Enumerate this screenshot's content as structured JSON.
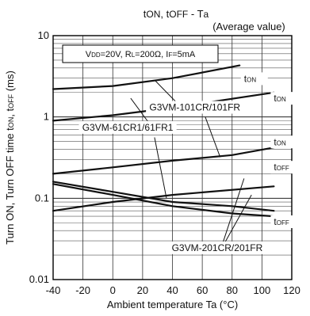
{
  "chart_data": {
    "type": "line",
    "title": {
      "main": "tON, tOFF - Ta",
      "sub": "(Average value)"
    },
    "xlabel": "Ambient temperature Ta (°C)",
    "ylabel": "Turn ON, Turn OFF time tON, tOFF (ms)",
    "xlim": [
      -40,
      120
    ],
    "ylim": [
      0.01,
      10
    ],
    "yscale": "log",
    "grid": true,
    "x_ticks": [
      "-40",
      "-20",
      "0",
      "20",
      "40",
      "60",
      "80",
      "100",
      "120"
    ],
    "y_ticks": [
      "0.01",
      "0.1",
      "1",
      "10"
    ],
    "condition": "VDD=20V, RL=200Ω, IF=5mA",
    "series": [
      {
        "x": [
          -40,
          0,
          40,
          85
        ],
        "y": [
          2.2,
          2.4,
          3.0,
          4.3
        ]
      },
      {
        "x": [
          -40,
          0,
          40,
          108
        ],
        "y": [
          0.9,
          1.05,
          1.3,
          2.0
        ]
      },
      {
        "x": [
          -40,
          0,
          40,
          80,
          108
        ],
        "y": [
          0.2,
          0.24,
          0.29,
          0.34,
          0.42
        ]
      },
      {
        "x": [
          -40,
          0,
          40,
          80,
          108
        ],
        "y": [
          0.15,
          0.11,
          0.08,
          0.065,
          0.06
        ]
      },
      {
        "x": [
          -40,
          0,
          40,
          108
        ],
        "y": [
          0.07,
          0.09,
          0.11,
          0.14
        ]
      },
      {
        "x": [
          -40,
          0,
          40,
          80,
          108
        ],
        "y": [
          0.16,
          0.12,
          0.09,
          0.08,
          0.07
        ]
      }
    ],
    "labels": [
      {
        "text": "tON",
        "x": 88,
        "y": 2.7
      },
      {
        "text": "tON",
        "x": 108,
        "y": 1.55
      },
      {
        "text": "tON",
        "x": 108,
        "y": 0.45
      },
      {
        "text": "tOFF",
        "x": 108,
        "y": 0.22
      },
      {
        "text": "tOFF",
        "x": 108,
        "y": 0.047
      },
      {
        "text": "G3VM-101CR/101FR",
        "x": 55,
        "y": 1.2
      },
      {
        "text": "G3VM-61CR1/61FR1",
        "x": 10,
        "y": 0.68
      },
      {
        "text": "G3VM-201CR/201FR",
        "x": 70,
        "y": 0.0225
      }
    ]
  }
}
